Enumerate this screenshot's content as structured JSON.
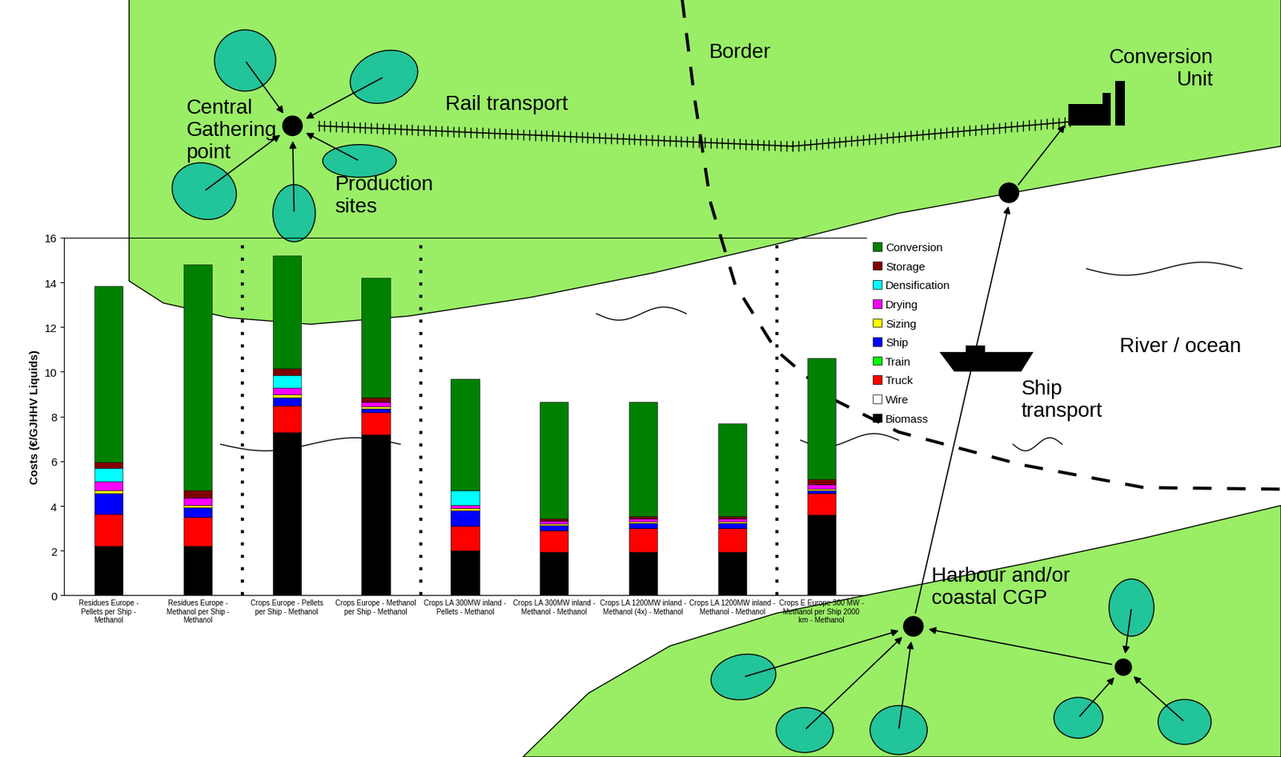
{
  "chart_data": {
    "type": "bar",
    "stacked": true,
    "ylabel": "Costs (€/GJHHV Liquids)",
    "ylim": [
      0,
      16
    ],
    "yticks": [
      0,
      2,
      4,
      6,
      8,
      10,
      12,
      14,
      16
    ],
    "grid": false,
    "legend": "upper left",
    "categories": [
      "Residues Europe - Pellets per Ship - Methanol",
      "Residues Europe - Methanol per Ship - Methanol",
      "Crops Europe - Pellets per Ship - Methanol",
      "Crops Europe - Methanol per Ship - Methanol",
      "Crops LA 300MW inland - Pellets - Methanol",
      "Crops LA 300MW inland - Methanol - Methanol",
      "Crops LA 1200MW inland - Methanol (4x) - Methanol",
      "Crops LA 1200MW inland - Methanol - Methanol",
      "Crops E Europe 300 MW - Methanol per Ship 2000 km - Methanol"
    ],
    "series": [
      {
        "name": "Biomass",
        "color": "#000000",
        "values": [
          2.2,
          2.2,
          7.3,
          7.2,
          2.0,
          1.95,
          1.95,
          1.95,
          3.6
        ]
      },
      {
        "name": "Wire",
        "color": "#ffffff",
        "values": [
          0,
          0,
          0,
          0,
          0,
          0,
          0,
          0,
          0
        ]
      },
      {
        "name": "Truck",
        "color": "#ff0000",
        "values": [
          1.45,
          1.3,
          1.2,
          1.0,
          1.1,
          0.95,
          1.05,
          1.05,
          0.95
        ]
      },
      {
        "name": "Train",
        "color": "#00ff00",
        "values": [
          0,
          0,
          0,
          0,
          0,
          0,
          0,
          0,
          0
        ]
      },
      {
        "name": "Ship",
        "color": "#0000ff",
        "values": [
          0.9,
          0.45,
          0.35,
          0.15,
          0.7,
          0.25,
          0.25,
          0.25,
          0.15
        ]
      },
      {
        "name": "Sizing",
        "color": "#ffff00",
        "values": [
          0.15,
          0.1,
          0.15,
          0.1,
          0.1,
          0.05,
          0.05,
          0.05,
          0.05
        ]
      },
      {
        "name": "Drying",
        "color": "#ff00ff",
        "values": [
          0.4,
          0.3,
          0.3,
          0.2,
          0.15,
          0.15,
          0.15,
          0.15,
          0.2
        ]
      },
      {
        "name": "Densification",
        "color": "#00ffff",
        "values": [
          0.6,
          0,
          0.55,
          0,
          0.65,
          0,
          0,
          0,
          0
        ]
      },
      {
        "name": "Storage",
        "color": "#800000",
        "values": [
          0.25,
          0.35,
          0.3,
          0.2,
          0,
          0.1,
          0.1,
          0.1,
          0.25
        ]
      },
      {
        "name": "Conversion",
        "color": "#008000",
        "values": [
          7.9,
          10.1,
          5.05,
          5.35,
          5.0,
          5.2,
          5.1,
          4.15,
          5.4
        ]
      }
    ]
  },
  "diagram": {
    "labels": {
      "gathering_point": "Central\nGathering\npoint",
      "production_sites": "Production\nsites",
      "rail": "Rail transport",
      "border": "Border",
      "conversion_unit": "Conversion\nUnit",
      "ship": "Ship\ntransport",
      "water": "River / ocean",
      "harbour": "Harbour and/or\ncoastal CGP"
    }
  }
}
